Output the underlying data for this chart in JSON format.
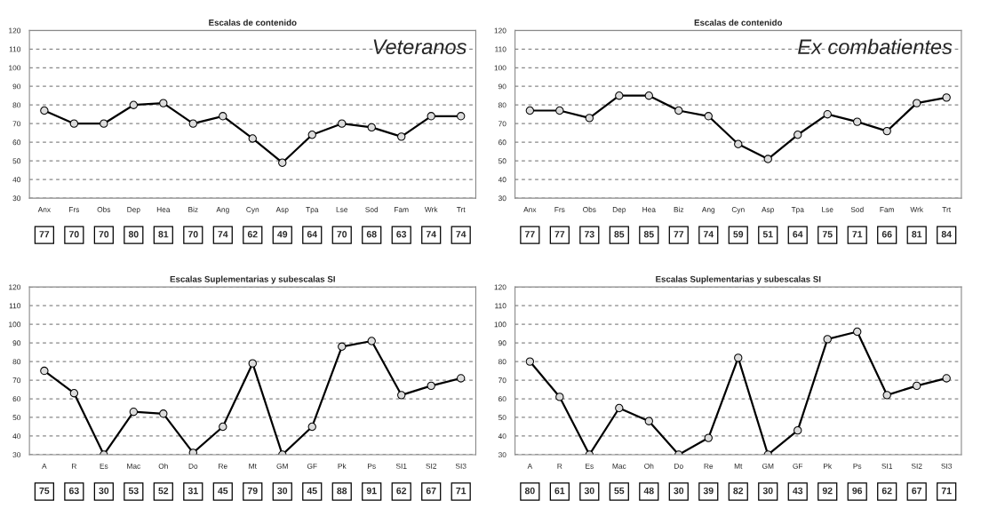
{
  "chart_data": [
    {
      "type": "line",
      "title": "Escalas de contenido",
      "annotations": [
        "Veteranos"
      ],
      "categories": [
        "Anx",
        "Frs",
        "Obs",
        "Dep",
        "Hea",
        "Biz",
        "Ang",
        "Cyn",
        "Asp",
        "Tpa",
        "Lse",
        "Sod",
        "Fam",
        "Wrk",
        "Trt"
      ],
      "series": [
        {
          "color": "#000000",
          "values": [
            77,
            70,
            70,
            80,
            81,
            70,
            74,
            62,
            49,
            64,
            70,
            68,
            63,
            74,
            74
          ]
        }
      ],
      "ylim": [
        30,
        120
      ],
      "yticks": [
        30,
        40,
        50,
        60,
        70,
        80,
        90,
        100,
        110,
        120
      ],
      "grid": "y",
      "marker": "circle",
      "line_style": "solid",
      "data_labels": true
    },
    {
      "type": "line",
      "title": "Escalas de contenido",
      "annotations": [
        "Ex combatientes"
      ],
      "categories": [
        "Anx",
        "Frs",
        "Obs",
        "Dep",
        "Hea",
        "Biz",
        "Ang",
        "Cyn",
        "Asp",
        "Tpa",
        "Lse",
        "Sod",
        "Fam",
        "Wrk",
        "Trt"
      ],
      "series": [
        {
          "color": "#000000",
          "values": [
            77,
            77,
            73,
            85,
            85,
            77,
            74,
            59,
            51,
            64,
            75,
            71,
            66,
            81,
            84
          ]
        }
      ],
      "ylim": [
        30,
        120
      ],
      "yticks": [
        30,
        40,
        50,
        60,
        70,
        80,
        90,
        100,
        110,
        120
      ],
      "grid": "y",
      "marker": "circle",
      "line_style": "solid",
      "data_labels": true
    },
    {
      "type": "line",
      "title": "Escalas Suplementarias y subescalas SI",
      "categories": [
        "A",
        "R",
        "Es",
        "Mac",
        "Oh",
        "Do",
        "Re",
        "Mt",
        "GM",
        "GF",
        "Pk",
        "Ps",
        "SI1",
        "SI2",
        "SI3"
      ],
      "series": [
        {
          "color": "#000000",
          "values": [
            75,
            63,
            30,
            53,
            52,
            31,
            45,
            79,
            30,
            45,
            88,
            91,
            62,
            67,
            71
          ]
        }
      ],
      "ylim": [
        30,
        120
      ],
      "yticks": [
        30,
        40,
        50,
        60,
        70,
        80,
        90,
        100,
        110,
        120
      ],
      "grid": "y",
      "marker": "circle",
      "line_style": "solid",
      "data_labels": true
    },
    {
      "type": "line",
      "title": "Escalas Suplementarias y subescalas SI",
      "categories": [
        "A",
        "R",
        "Es",
        "Mac",
        "Oh",
        "Do",
        "Re",
        "Mt",
        "GM",
        "GF",
        "Pk",
        "Ps",
        "SI1",
        "SI2",
        "SI3"
      ],
      "series": [
        {
          "color": "#000000",
          "values": [
            80,
            61,
            30,
            55,
            48,
            30,
            39,
            82,
            30,
            43,
            92,
            96,
            62,
            67,
            71
          ]
        }
      ],
      "ylim": [
        30,
        120
      ],
      "yticks": [
        30,
        40,
        50,
        60,
        70,
        80,
        90,
        100,
        110,
        120
      ],
      "grid": "y",
      "marker": "circle",
      "line_style": "solid",
      "data_labels": true
    }
  ]
}
